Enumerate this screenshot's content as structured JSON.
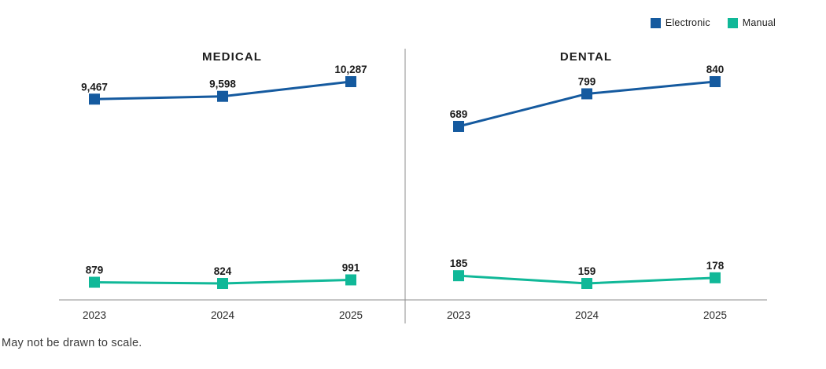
{
  "legend": {
    "items": [
      {
        "label": "Electronic",
        "color": "#155a9f"
      },
      {
        "label": "Manual",
        "color": "#10b898"
      }
    ]
  },
  "footnote": "May not be drawn to scale.",
  "colors": {
    "electronic": "#155a9f",
    "manual": "#10b898",
    "axis": "#8c8c8c",
    "label_text": "#1a1a1a"
  },
  "chart_data": [
    {
      "type": "line",
      "title": "MEDICAL",
      "categories": [
        "2023",
        "2024",
        "2025"
      ],
      "series": [
        {
          "name": "Electronic",
          "color": "#155a9f",
          "values": [
            9467,
            9598,
            10287
          ],
          "labels": [
            "9,467",
            "9,598",
            "10,287"
          ]
        },
        {
          "name": "Manual",
          "color": "#10b898",
          "values": [
            879,
            824,
            991
          ],
          "labels": [
            "879",
            "824",
            "991"
          ]
        }
      ],
      "xlabel": "",
      "ylabel": "",
      "grid": false,
      "legend_position": "top-right",
      "marker": "square",
      "data_labels": true
    },
    {
      "type": "line",
      "title": "DENTAL",
      "categories": [
        "2023",
        "2024",
        "2025"
      ],
      "series": [
        {
          "name": "Electronic",
          "color": "#155a9f",
          "values": [
            689,
            799,
            840
          ],
          "labels": [
            "689",
            "799",
            "840"
          ]
        },
        {
          "name": "Manual",
          "color": "#10b898",
          "values": [
            185,
            159,
            178
          ],
          "labels": [
            "185",
            "159",
            "178"
          ]
        }
      ],
      "xlabel": "",
      "ylabel": "",
      "grid": false,
      "legend_position": "top-right",
      "marker": "square",
      "data_labels": true
    }
  ]
}
